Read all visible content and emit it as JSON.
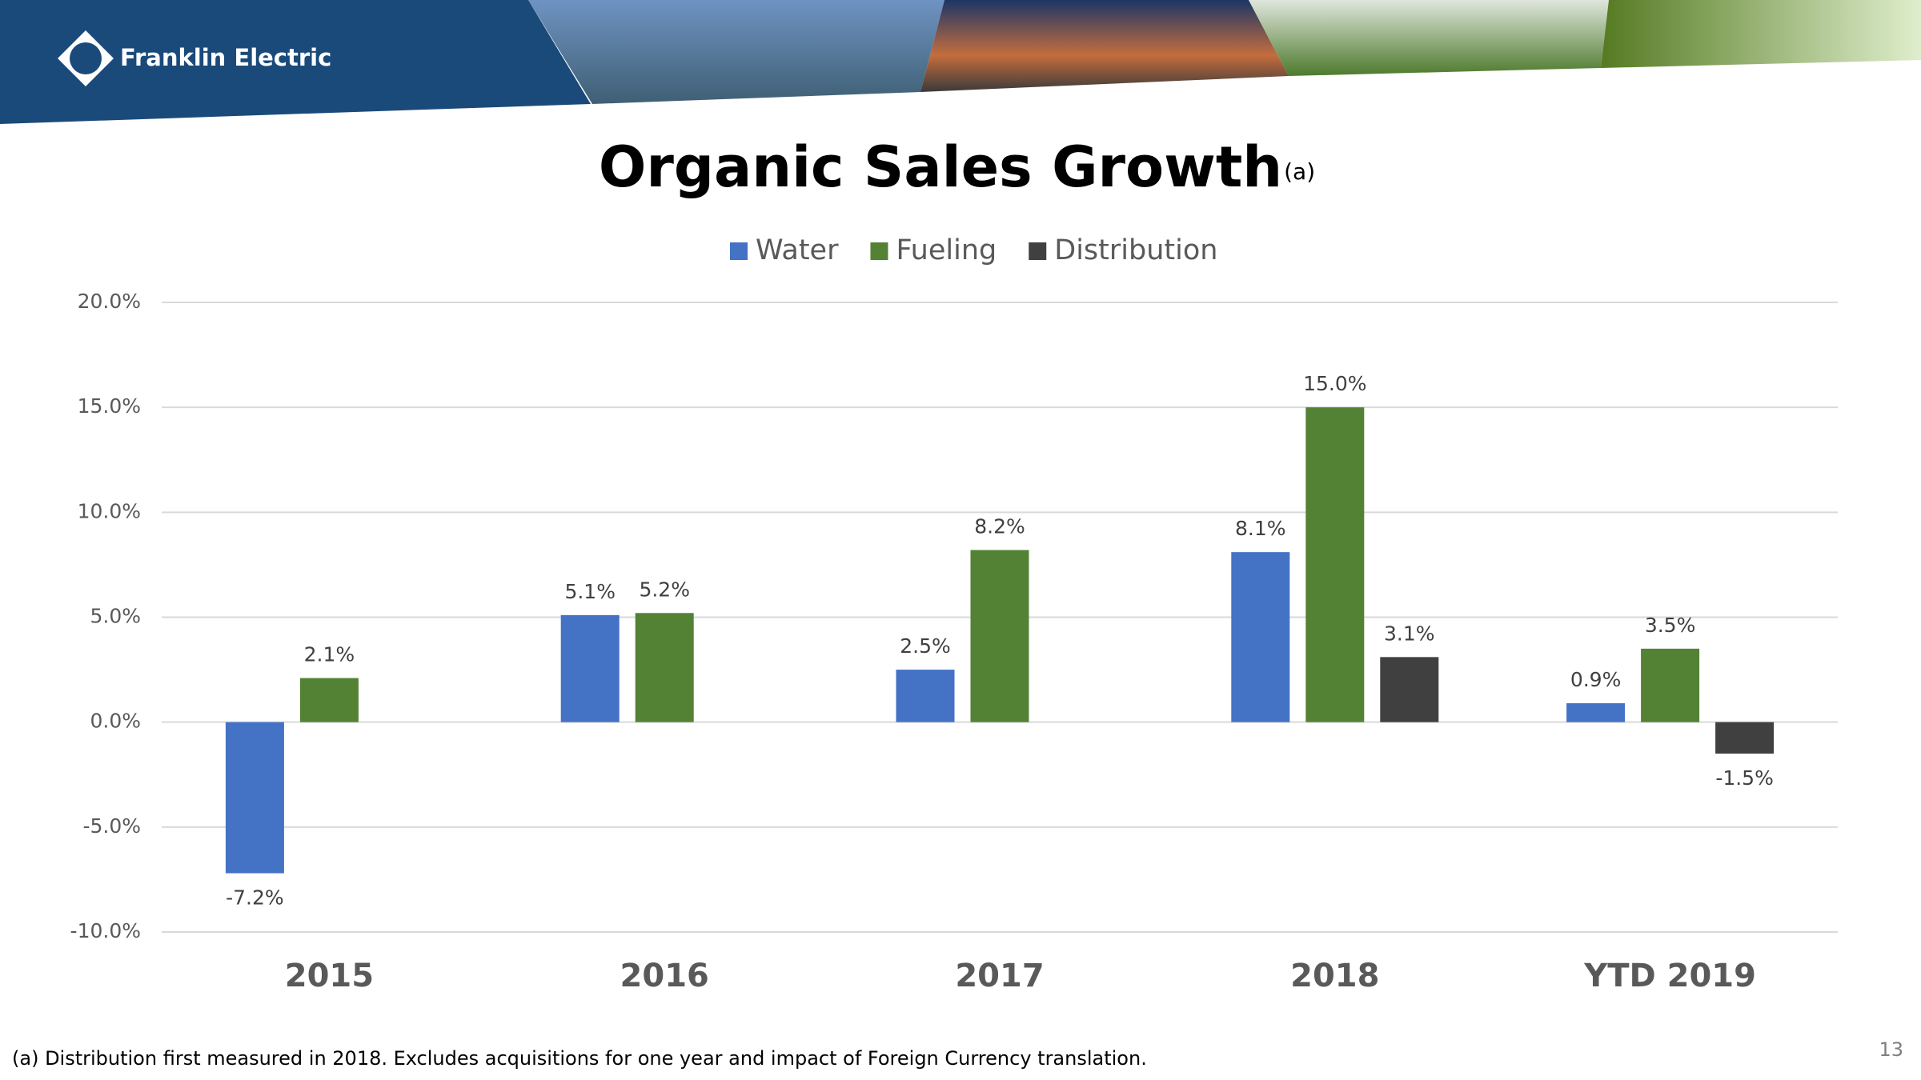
{
  "brand": "Franklin Electric",
  "page_number": "13",
  "chart_data": {
    "type": "bar",
    "title": "Organic Sales Growth",
    "title_note": "(a)",
    "footnote": "(a)  Distribution first measured in 2018.  Excludes acquisitions for one year and impact of Foreign Currency translation.",
    "categories": [
      "2015",
      "2016",
      "2017",
      "2018",
      "YTD 2019"
    ],
    "series": [
      {
        "name": "Water",
        "color": "#4472c4",
        "values": [
          -7.2,
          5.1,
          2.5,
          8.1,
          0.9
        ],
        "value_labels": [
          "-7.2%",
          "5.1%",
          "2.5%",
          "8.1%",
          "0.9%"
        ]
      },
      {
        "name": "Fueling",
        "color": "#548235",
        "values": [
          2.1,
          5.2,
          8.2,
          15.0,
          3.5
        ],
        "value_labels": [
          "2.1%",
          "5.2%",
          "8.2%",
          "15.0%",
          "3.5%"
        ]
      },
      {
        "name": "Distribution",
        "color": "#404040",
        "values": [
          null,
          null,
          null,
          3.1,
          -1.5
        ],
        "value_labels": [
          null,
          null,
          null,
          "3.1%",
          "-1.5%"
        ]
      }
    ],
    "ylim": [
      -10,
      20
    ],
    "yticks": [
      {
        "value": -10,
        "label": "-10.0%"
      },
      {
        "value": -5,
        "label": "-5.0%"
      },
      {
        "value": 0,
        "label": "0.0%"
      },
      {
        "value": 5,
        "label": "5.0%"
      },
      {
        "value": 10,
        "label": "10.0%"
      },
      {
        "value": 15,
        "label": "15.0%"
      },
      {
        "value": 20,
        "label": "20.0%"
      }
    ],
    "grid": true,
    "legend": "top"
  }
}
